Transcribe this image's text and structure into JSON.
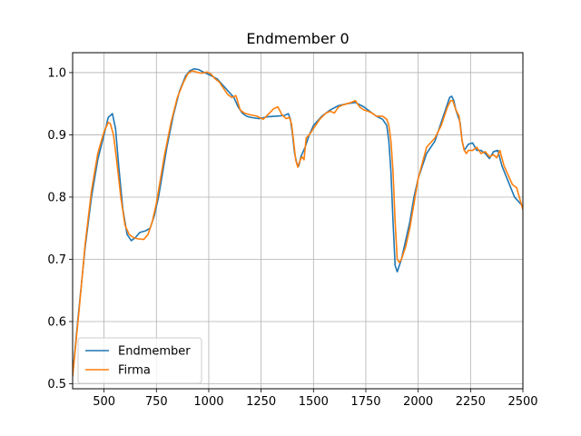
{
  "chart_data": {
    "type": "line",
    "title": "Endmember 0",
    "xlabel": "",
    "ylabel": "",
    "xlim": [
      350,
      2500
    ],
    "ylim": [
      0.492,
      1.032
    ],
    "grid": true,
    "legend_position": "lower-left",
    "x_ticks": [
      500,
      750,
      1000,
      1250,
      1500,
      1750,
      2000,
      2250,
      2500
    ],
    "x_tick_labels": [
      "500",
      "750",
      "1000",
      "1250",
      "1500",
      "1750",
      "2000",
      "2250",
      "2500"
    ],
    "y_ticks": [
      0.5,
      0.6,
      0.7,
      0.8,
      0.9,
      1.0
    ],
    "y_tick_labels": [
      "0.5",
      "0.6",
      "0.7",
      "0.8",
      "0.9",
      "1.0"
    ],
    "series": [
      {
        "name": "Endmember",
        "color": "#1f77b4",
        "x": [
          350,
          380,
          410,
          440,
          470,
          500,
          520,
          540,
          555,
          570,
          590,
          610,
          630,
          650,
          670,
          700,
          720,
          740,
          760,
          780,
          800,
          830,
          860,
          890,
          910,
          930,
          950,
          980,
          1000,
          1040,
          1080,
          1120,
          1140,
          1160,
          1180,
          1200,
          1240,
          1280,
          1320,
          1360,
          1380,
          1390,
          1400,
          1410,
          1420,
          1430,
          1440,
          1460,
          1480,
          1500,
          1540,
          1580,
          1620,
          1660,
          1700,
          1740,
          1780,
          1800,
          1830,
          1850,
          1860,
          1870,
          1880,
          1890,
          1900,
          1910,
          1920,
          1940,
          1960,
          1980,
          2000,
          2040,
          2080,
          2120,
          2150,
          2160,
          2170,
          2180,
          2200,
          2210,
          2220,
          2240,
          2260,
          2280,
          2300,
          2320,
          2340,
          2360,
          2380,
          2400,
          2430,
          2460,
          2500
        ],
        "y": [
          0.515,
          0.62,
          0.72,
          0.8,
          0.86,
          0.9,
          0.928,
          0.934,
          0.91,
          0.85,
          0.78,
          0.74,
          0.73,
          0.735,
          0.743,
          0.746,
          0.75,
          0.77,
          0.8,
          0.84,
          0.88,
          0.93,
          0.97,
          0.995,
          1.003,
          1.006,
          1.005,
          1.0,
          0.997,
          0.99,
          0.975,
          0.96,
          0.945,
          0.935,
          0.93,
          0.928,
          0.926,
          0.929,
          0.93,
          0.931,
          0.934,
          0.925,
          0.9,
          0.87,
          0.855,
          0.85,
          0.865,
          0.88,
          0.9,
          0.915,
          0.93,
          0.94,
          0.947,
          0.95,
          0.952,
          0.945,
          0.935,
          0.93,
          0.925,
          0.915,
          0.89,
          0.84,
          0.76,
          0.69,
          0.68,
          0.69,
          0.7,
          0.73,
          0.76,
          0.8,
          0.83,
          0.87,
          0.89,
          0.93,
          0.96,
          0.962,
          0.955,
          0.94,
          0.92,
          0.89,
          0.875,
          0.885,
          0.887,
          0.875,
          0.875,
          0.87,
          0.862,
          0.873,
          0.875,
          0.85,
          0.825,
          0.8,
          0.785
        ]
      },
      {
        "name": "Firma",
        "color": "#ff7f0e",
        "x": [
          350,
          380,
          410,
          440,
          470,
          500,
          520,
          530,
          545,
          560,
          580,
          600,
          620,
          640,
          660,
          690,
          710,
          730,
          750,
          770,
          790,
          820,
          850,
          880,
          900,
          920,
          950,
          970,
          990,
          1010,
          1030,
          1050,
          1070,
          1090,
          1110,
          1130,
          1150,
          1170,
          1200,
          1230,
          1260,
          1290,
          1310,
          1330,
          1350,
          1370,
          1385,
          1395,
          1405,
          1415,
          1425,
          1435,
          1445,
          1455,
          1465,
          1480,
          1500,
          1530,
          1560,
          1580,
          1600,
          1620,
          1640,
          1660,
          1680,
          1700,
          1720,
          1740,
          1760,
          1780,
          1800,
          1830,
          1850,
          1860,
          1870,
          1880,
          1890,
          1900,
          1910,
          1920,
          1940,
          1960,
          1980,
          2000,
          2040,
          2080,
          2110,
          2140,
          2155,
          2165,
          2180,
          2195,
          2210,
          2220,
          2230,
          2240,
          2260,
          2280,
          2300,
          2320,
          2340,
          2360,
          2375,
          2390,
          2410,
          2430,
          2450,
          2470,
          2500
        ],
        "y": [
          0.512,
          0.615,
          0.725,
          0.81,
          0.87,
          0.905,
          0.92,
          0.918,
          0.9,
          0.86,
          0.8,
          0.755,
          0.74,
          0.735,
          0.733,
          0.732,
          0.74,
          0.76,
          0.79,
          0.83,
          0.87,
          0.92,
          0.96,
          0.985,
          0.998,
          1.003,
          1.0,
          0.999,
          1.001,
          0.998,
          0.99,
          0.985,
          0.975,
          0.965,
          0.96,
          0.963,
          0.94,
          0.935,
          0.932,
          0.93,
          0.925,
          0.935,
          0.942,
          0.945,
          0.932,
          0.926,
          0.928,
          0.918,
          0.89,
          0.86,
          0.848,
          0.858,
          0.865,
          0.86,
          0.895,
          0.9,
          0.91,
          0.925,
          0.935,
          0.938,
          0.935,
          0.945,
          0.948,
          0.95,
          0.952,
          0.955,
          0.945,
          0.94,
          0.938,
          0.935,
          0.93,
          0.93,
          0.925,
          0.915,
          0.89,
          0.84,
          0.76,
          0.7,
          0.695,
          0.7,
          0.72,
          0.75,
          0.79,
          0.83,
          0.88,
          0.895,
          0.915,
          0.945,
          0.955,
          0.955,
          0.94,
          0.93,
          0.89,
          0.875,
          0.87,
          0.875,
          0.875,
          0.88,
          0.87,
          0.873,
          0.865,
          0.868,
          0.863,
          0.875,
          0.85,
          0.835,
          0.82,
          0.815,
          0.78
        ]
      }
    ]
  }
}
